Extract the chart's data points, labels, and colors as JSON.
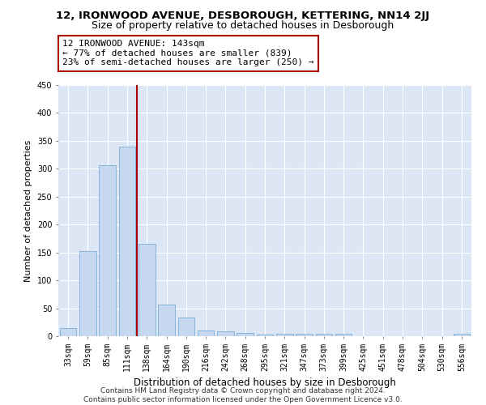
{
  "title": "12, IRONWOOD AVENUE, DESBOROUGH, KETTERING, NN14 2JJ",
  "subtitle": "Size of property relative to detached houses in Desborough",
  "xlabel": "Distribution of detached houses by size in Desborough",
  "ylabel": "Number of detached properties",
  "categories": [
    "33sqm",
    "59sqm",
    "85sqm",
    "111sqm",
    "138sqm",
    "164sqm",
    "190sqm",
    "216sqm",
    "242sqm",
    "268sqm",
    "295sqm",
    "321sqm",
    "347sqm",
    "373sqm",
    "399sqm",
    "425sqm",
    "451sqm",
    "478sqm",
    "504sqm",
    "530sqm",
    "556sqm"
  ],
  "values": [
    15,
    152,
    306,
    340,
    166,
    56,
    34,
    10,
    8,
    6,
    3,
    5,
    5,
    5,
    5,
    0,
    0,
    0,
    0,
    0,
    4
  ],
  "bar_color": "#c5d8f0",
  "bar_edge_color": "#7aaed6",
  "background_color": "#dce6f5",
  "grid_color": "#ffffff",
  "ylim": [
    0,
    450
  ],
  "yticks": [
    0,
    50,
    100,
    150,
    200,
    250,
    300,
    350,
    400,
    450
  ],
  "vline_color": "#aa0000",
  "annotation_text": "12 IRONWOOD AVENUE: 143sqm\n← 77% of detached houses are smaller (839)\n23% of semi-detached houses are larger (250) →",
  "annotation_box_color": "#ffffff",
  "annotation_box_edge_color": "#aa0000",
  "footer": "Contains HM Land Registry data © Crown copyright and database right 2024.\nContains public sector information licensed under the Open Government Licence v3.0.",
  "title_fontsize": 9.5,
  "subtitle_fontsize": 9,
  "xlabel_fontsize": 8.5,
  "ylabel_fontsize": 8,
  "tick_fontsize": 7,
  "annotation_fontsize": 8,
  "footer_fontsize": 6.5
}
